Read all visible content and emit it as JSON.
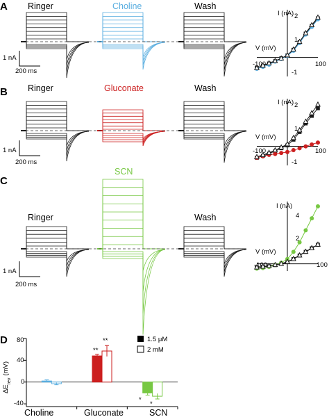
{
  "panels": {
    "A": {
      "label": "A",
      "conditions": [
        "Ringer",
        "Choline",
        "Wash"
      ],
      "scale_current": "1 nA",
      "scale_time": "200 ms",
      "iv": {
        "ylabel": "I (nA)",
        "xlabel": "V (mV)",
        "yticks": [
          "2",
          "1",
          "-1"
        ],
        "xticks": [
          "-100",
          "100"
        ]
      }
    },
    "B": {
      "label": "B",
      "conditions": [
        "Ringer",
        "Gluconate",
        "Wash"
      ],
      "scale_current": "1 nA",
      "scale_time": "200 ms",
      "iv": {
        "ylabel": "I (nA)",
        "xlabel": "V (mV)",
        "yticks": [
          "2",
          "1",
          "-1"
        ],
        "xticks": [
          "-100",
          "100"
        ]
      }
    },
    "C": {
      "label": "C",
      "conditions": [
        "Ringer",
        "SCN",
        "Wash"
      ],
      "scale_current": "1 nA",
      "scale_time": "200 ms",
      "iv": {
        "ylabel": "I (nA)",
        "xlabel": "V (mV)",
        "yticks": [
          "4",
          "2"
        ],
        "xticks": [
          "-100",
          "100"
        ]
      }
    },
    "D": {
      "label": "D"
    }
  },
  "colors": {
    "ringer": "#1a1a1a",
    "choline": "#5aaee0",
    "gluconate": "#cc1f1f",
    "scn": "#77c843",
    "hollow": "#ffffff"
  },
  "chart_data": [
    {
      "panel": "A",
      "type": "scatter",
      "xlabel": "V (mV)",
      "ylabel": "I (nA)",
      "xlim": [
        -100,
        100
      ],
      "ylim": [
        -1,
        2.5
      ],
      "series": [
        {
          "x": [
            -100,
            -80,
            -60,
            -40,
            -20,
            0,
            20,
            40,
            60,
            80,
            100
          ],
          "y": [
            -0.55,
            -0.45,
            -0.32,
            -0.2,
            -0.05,
            0.1,
            0.4,
            0.8,
            1.25,
            1.65,
            2.05
          ],
          "color": "#1a1a1a",
          "marker": "filled-square"
        },
        {
          "x": [
            -100,
            -80,
            -60,
            -40,
            -20,
            0,
            20,
            40,
            60,
            80,
            100
          ],
          "y": [
            -0.6,
            -0.5,
            -0.38,
            -0.22,
            -0.08,
            0.08,
            0.35,
            0.75,
            1.2,
            1.6,
            2.0
          ],
          "color": "#5aaee0",
          "marker": "filled-circle"
        },
        {
          "x": [
            -100,
            -80,
            -60,
            -40,
            -20,
            0,
            20,
            40,
            60,
            80,
            100
          ],
          "y": [
            -0.55,
            -0.42,
            -0.3,
            -0.18,
            -0.05,
            0.12,
            0.42,
            0.82,
            1.28,
            1.7,
            2.1
          ],
          "color": "#1a1a1a",
          "marker": "open-triangle"
        }
      ]
    },
    {
      "panel": "B",
      "type": "scatter",
      "xlabel": "V (mV)",
      "ylabel": "I (nA)",
      "xlim": [
        -100,
        100
      ],
      "ylim": [
        -1,
        2.5
      ],
      "series": [
        {
          "x": [
            -100,
            -80,
            -60,
            -40,
            -20,
            0,
            20,
            40,
            60,
            80,
            100
          ],
          "y": [
            -0.6,
            -0.5,
            -0.38,
            -0.25,
            -0.1,
            0.05,
            0.35,
            0.75,
            1.2,
            1.6,
            2.0
          ],
          "color": "#1a1a1a",
          "marker": "filled-square"
        },
        {
          "x": [
            -100,
            -80,
            -60,
            -40,
            -20,
            0,
            20,
            40,
            60,
            80,
            100
          ],
          "y": [
            -0.6,
            -0.52,
            -0.45,
            -0.4,
            -0.35,
            -0.3,
            -0.2,
            -0.1,
            0.0,
            0.1,
            0.2
          ],
          "color": "#cc1f1f",
          "marker": "filled-circle"
        },
        {
          "x": [
            -100,
            -80,
            -60,
            -40,
            -20,
            0,
            20,
            40,
            60,
            80,
            100
          ],
          "y": [
            -0.55,
            -0.45,
            -0.33,
            -0.2,
            -0.05,
            0.12,
            0.45,
            0.85,
            1.3,
            1.75,
            2.2
          ],
          "color": "#1a1a1a",
          "marker": "open-triangle"
        }
      ]
    },
    {
      "panel": "C",
      "type": "scatter",
      "xlabel": "V (mV)",
      "ylabel": "I (nA)",
      "xlim": [
        -100,
        100
      ],
      "ylim": [
        -0.6,
        5.2
      ],
      "series": [
        {
          "x": [
            -100,
            -80,
            -60,
            -40,
            -20,
            0,
            20,
            40,
            60,
            80,
            100
          ],
          "y": [
            -0.3,
            -0.25,
            -0.2,
            -0.1,
            0.0,
            0.15,
            0.4,
            0.7,
            1.0,
            1.3,
            1.6
          ],
          "color": "#1a1a1a",
          "marker": "filled-square"
        },
        {
          "x": [
            -100,
            -80,
            -60,
            -40,
            -20,
            0,
            20,
            40,
            60,
            80,
            100
          ],
          "y": [
            -0.4,
            -0.35,
            -0.25,
            -0.1,
            0.1,
            0.4,
            1.0,
            1.8,
            2.8,
            3.8,
            4.8
          ],
          "color": "#77c843",
          "marker": "filled-circle"
        },
        {
          "x": [
            -100,
            -80,
            -60,
            -40,
            -20,
            0,
            20,
            40,
            60,
            80,
            100
          ],
          "y": [
            -0.28,
            -0.22,
            -0.16,
            -0.08,
            0.02,
            0.18,
            0.42,
            0.72,
            1.02,
            1.32,
            1.62
          ],
          "color": "#1a1a1a",
          "marker": "open-triangle"
        }
      ]
    },
    {
      "panel": "D",
      "type": "bar",
      "ylabel": "ΔE",
      "ylabel_subscript": "rev",
      "ylabel_suffix": "(mV)",
      "ylim": [
        -45,
        80
      ],
      "yticks": [
        "80",
        "40",
        "0",
        "-40"
      ],
      "categories": [
        "Choline",
        "Gluconate",
        "SCN"
      ],
      "legend": [
        "1.5 μM",
        "2 mM"
      ],
      "series": [
        {
          "name": "1.5 μM",
          "values": [
            2,
            48,
            -20
          ],
          "errors": [
            2,
            3,
            4
          ],
          "colors": [
            "#5aaee0",
            "#cc1f1f",
            "#77c843"
          ],
          "fill": "solid"
        },
        {
          "name": "2 mM",
          "values": [
            -3,
            57,
            -26
          ],
          "errors": [
            2,
            10,
            5
          ],
          "colors": [
            "#5aaee0",
            "#cc1f1f",
            "#77c843"
          ],
          "fill": "open"
        }
      ],
      "annotations": [
        {
          "category": "Gluconate",
          "series": "1.5 μM",
          "text": "**"
        },
        {
          "category": "Gluconate",
          "series": "2 mM",
          "text": "**"
        },
        {
          "category": "SCN",
          "series": "1.5 μM",
          "text": "*"
        },
        {
          "category": "SCN",
          "series": "2 mM",
          "text": "*"
        }
      ]
    }
  ]
}
